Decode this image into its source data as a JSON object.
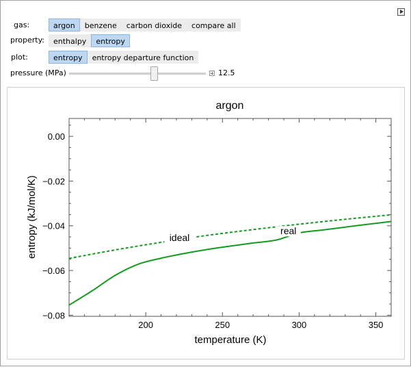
{
  "controls": {
    "gas": {
      "label": "gas:",
      "options": [
        "argon",
        "benzene",
        "carbon dioxide",
        "compare all"
      ],
      "selected": "argon"
    },
    "property": {
      "label": "property:",
      "options": [
        "enthalpy",
        "entropy"
      ],
      "selected": "entropy"
    },
    "plot": {
      "label": "plot:",
      "options": [
        "entropy",
        "entropy departure function"
      ],
      "selected": "entropy"
    },
    "pressure": {
      "label": "pressure (MPa)",
      "value": 12.5,
      "value_text": "12.5",
      "min": 0.1,
      "max": 20
    }
  },
  "chart_data": {
    "type": "line",
    "title": "argon",
    "xlabel": "temperature (K)",
    "ylabel": "entropy  (kJ/mol/K)",
    "xlim": [
      150,
      360
    ],
    "ylim": [
      -0.0805,
      0.008
    ],
    "x_ticks": [
      {
        "value": 200,
        "label": "200"
      },
      {
        "value": 250,
        "label": "250"
      },
      {
        "value": 300,
        "label": "300"
      },
      {
        "value": 350,
        "label": "350"
      }
    ],
    "y_ticks": [
      {
        "value": 0.0,
        "label": "0.00"
      },
      {
        "value": -0.02,
        "label": "−0.02"
      },
      {
        "value": -0.04,
        "label": "−0.04"
      },
      {
        "value": -0.06,
        "label": "−0.06"
      },
      {
        "value": -0.08,
        "label": "−0.08"
      }
    ],
    "grid": false,
    "color": "#129b1e",
    "series": [
      {
        "name": "ideal",
        "style": "dashed",
        "x": [
          150,
          180,
          210,
          240,
          270,
          300,
          330,
          360
        ],
        "y": [
          -0.0546,
          -0.0508,
          -0.0474,
          -0.0443,
          -0.0417,
          -0.0393,
          -0.0371,
          -0.0351
        ]
      },
      {
        "name": "real",
        "style": "solid",
        "x": [
          150,
          165,
          180,
          195,
          210,
          225,
          240,
          255,
          270,
          285,
          300,
          315,
          330,
          345,
          360
        ],
        "y": [
          -0.0755,
          -0.0691,
          -0.0622,
          -0.0572,
          -0.0545,
          -0.0524,
          -0.0506,
          -0.0491,
          -0.0477,
          -0.0464,
          -0.0432,
          -0.0419,
          -0.0406,
          -0.0393,
          -0.0381
        ]
      }
    ],
    "annotations": [
      {
        "text": "ideal",
        "x": 222,
        "y": -0.0462
      },
      {
        "text": "real",
        "x": 293,
        "y": -0.0432
      }
    ]
  }
}
